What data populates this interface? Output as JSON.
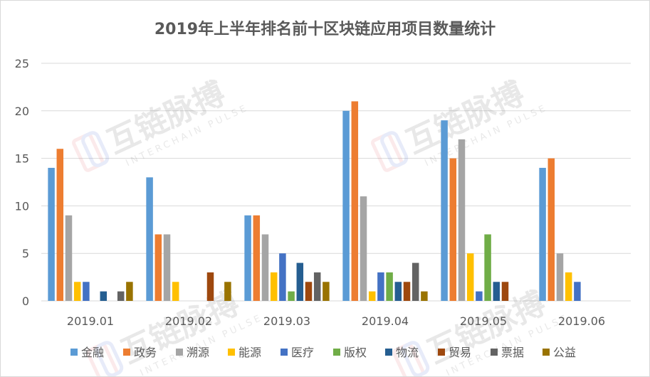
{
  "chart_data": {
    "type": "bar",
    "title": "2019年上半年排名前十区块链应用项目数量统计",
    "categories": [
      "2019.01",
      "2019.02",
      "2019.03",
      "2019.04",
      "2019.05",
      "2019.06"
    ],
    "ylim": [
      0,
      25
    ],
    "yticks": [
      0,
      5,
      10,
      15,
      20,
      25
    ],
    "grid": true,
    "legend_position": "bottom",
    "series": [
      {
        "name": "金融",
        "color": "#5b9bd5",
        "values": [
          14,
          13,
          9,
          20,
          19,
          14
        ]
      },
      {
        "name": "政务",
        "color": "#ed7d31",
        "values": [
          16,
          7,
          9,
          21,
          15,
          15
        ]
      },
      {
        "name": "溯源",
        "color": "#a5a5a5",
        "values": [
          9,
          7,
          7,
          11,
          17,
          5
        ]
      },
      {
        "name": "能源",
        "color": "#ffc000",
        "values": [
          2,
          2,
          3,
          1,
          5,
          3
        ]
      },
      {
        "name": "医疗",
        "color": "#4472c4",
        "values": [
          2,
          0,
          5,
          3,
          1,
          2
        ]
      },
      {
        "name": "版权",
        "color": "#70ad47",
        "values": [
          0,
          0,
          1,
          3,
          7,
          0
        ]
      },
      {
        "name": "物流",
        "color": "#255e91",
        "values": [
          1,
          0,
          4,
          2,
          2,
          0
        ]
      },
      {
        "name": "贸易",
        "color": "#9e480e",
        "values": [
          0,
          3,
          2,
          2,
          2,
          0
        ]
      },
      {
        "name": "票据",
        "color": "#636363",
        "values": [
          1,
          0,
          3,
          4,
          0,
          0
        ]
      },
      {
        "name": "公益",
        "color": "#997300",
        "values": [
          2,
          2,
          2,
          1,
          0,
          0
        ]
      }
    ]
  },
  "watermark": {
    "text": "互链脉搏",
    "subtext": "INTERCHAIN PULSE"
  }
}
